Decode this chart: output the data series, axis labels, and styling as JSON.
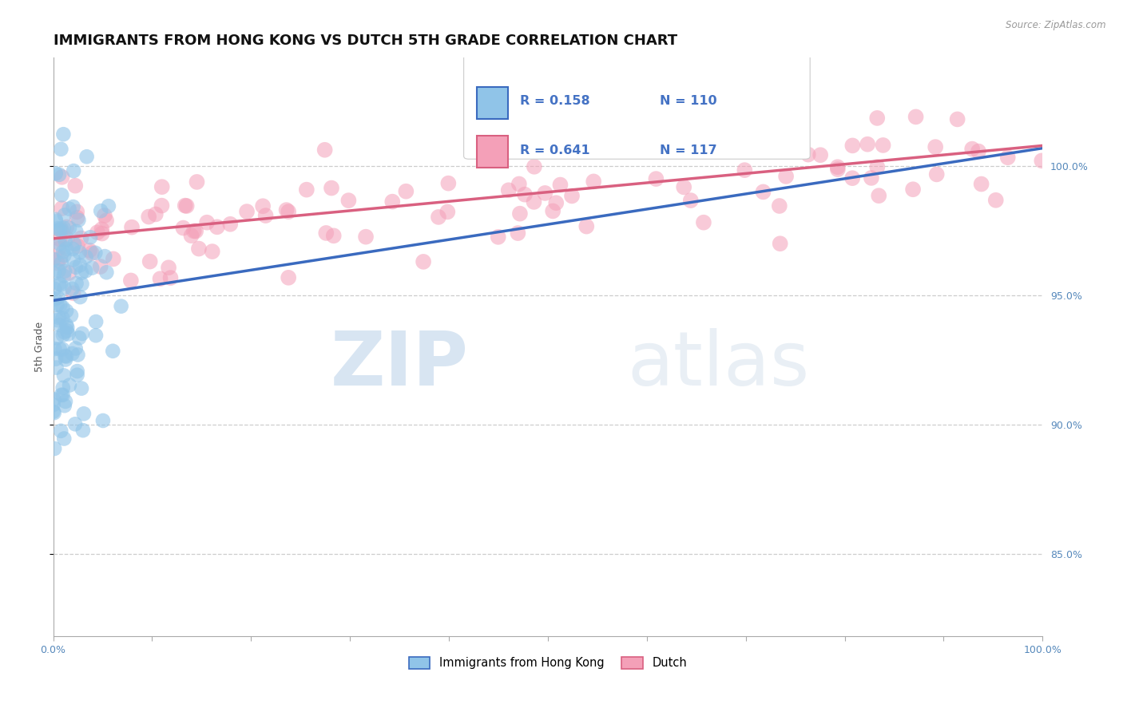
{
  "title": "IMMIGRANTS FROM HONG KONG VS DUTCH 5TH GRADE CORRELATION CHART",
  "source_text": "Source: ZipAtlas.com",
  "ylabel": "5th Grade",
  "xlim": [
    0.0,
    1.0
  ],
  "ylim": [
    0.818,
    1.042
  ],
  "yticks": [
    0.85,
    0.9,
    0.95,
    1.0
  ],
  "ytick_labels": [
    "85.0%",
    "90.0%",
    "95.0%",
    "100.0%"
  ],
  "hk_R": 0.158,
  "hk_N": 110,
  "dutch_R": 0.641,
  "dutch_N": 117,
  "hk_color": "#90c4e8",
  "dutch_color": "#f4a0b8",
  "hk_line_color": "#3a6abf",
  "dutch_line_color": "#d96080",
  "legend_text_color": "#4472c4",
  "title_fontsize": 13,
  "axis_label_fontsize": 9,
  "tick_fontsize": 9,
  "watermark_zip": "ZIP",
  "watermark_atlas": "atlas",
  "background_color": "#ffffff",
  "grid_color": "#c8c8c8",
  "right_tick_color": "#5588bb",
  "hk_line_start_y": 0.948,
  "hk_line_end_y": 1.007,
  "dutch_line_start_y": 0.972,
  "dutch_line_end_y": 1.008
}
